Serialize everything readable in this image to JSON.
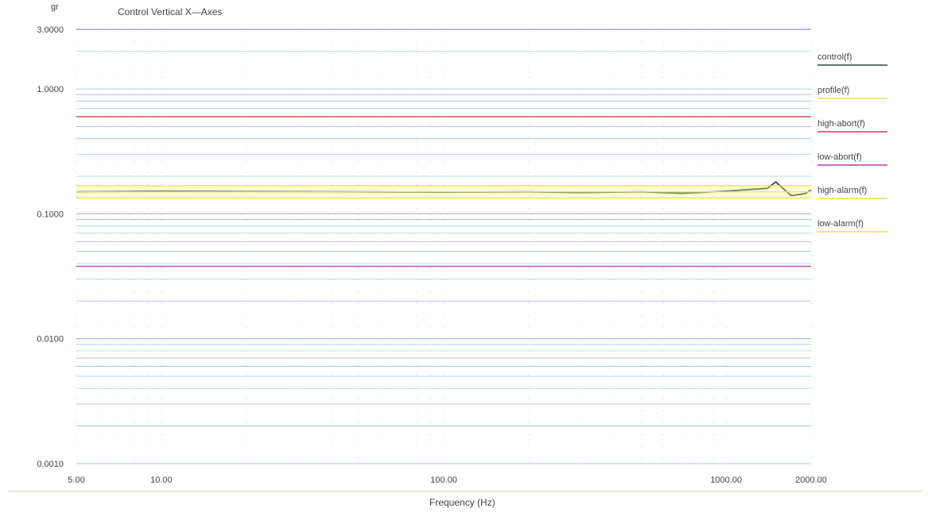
{
  "chart_data": {
    "type": "line",
    "title": "Control Vertical  X—Axes",
    "ylabel": "gr",
    "xlabel": "Frequency (Hz)",
    "x_scale": "log",
    "y_scale": "log",
    "xlim": [
      5,
      2000
    ],
    "ylim": [
      0.001,
      3
    ],
    "x_ticks": [
      {
        "value": 5,
        "label": "5.00"
      },
      {
        "value": 10,
        "label": "10.00"
      },
      {
        "value": 100,
        "label": "100.00"
      },
      {
        "value": 1000,
        "label": "1000.00"
      },
      {
        "value": 2000,
        "label": "2000.00"
      }
    ],
    "y_ticks": [
      {
        "value": 3,
        "label": "3.0000"
      },
      {
        "value": 1,
        "label": "1.0000"
      },
      {
        "value": 0.1,
        "label": "0.1000"
      },
      {
        "value": 0.01,
        "label": "0.0100"
      },
      {
        "value": 0.001,
        "label": "0.0010"
      }
    ],
    "grid": true,
    "legend_position": "right",
    "series": [
      {
        "name": "control(f)",
        "color": "#2a4a3a",
        "x": [
          5,
          10,
          50,
          100,
          200,
          300,
          500,
          700,
          1000,
          1400,
          1500,
          1700,
          1900,
          2000
        ],
        "y": [
          0.15,
          0.152,
          0.15,
          0.149,
          0.15,
          0.148,
          0.15,
          0.146,
          0.152,
          0.16,
          0.18,
          0.14,
          0.145,
          0.155
        ]
      },
      {
        "name": "profile(f)",
        "color": "#e8e060",
        "x": [
          5,
          2000
        ],
        "y": [
          0.15,
          0.15
        ]
      },
      {
        "name": "high-abort(f)",
        "color": "#d04040",
        "x": [
          5,
          2000
        ],
        "y": [
          0.6,
          0.6
        ]
      },
      {
        "name": "low-abort(f)",
        "color": "#b040a0",
        "x": [
          5,
          2000
        ],
        "y": [
          0.038,
          0.038
        ]
      },
      {
        "name": "high-alarm(f)",
        "color": "#e8e040",
        "x": [
          5,
          2000
        ],
        "y": [
          0.168,
          0.168
        ]
      },
      {
        "name": "low-alarm(f)",
        "color": "#e8e040",
        "x": [
          5,
          2000
        ],
        "y": [
          0.134,
          0.134
        ]
      }
    ]
  }
}
